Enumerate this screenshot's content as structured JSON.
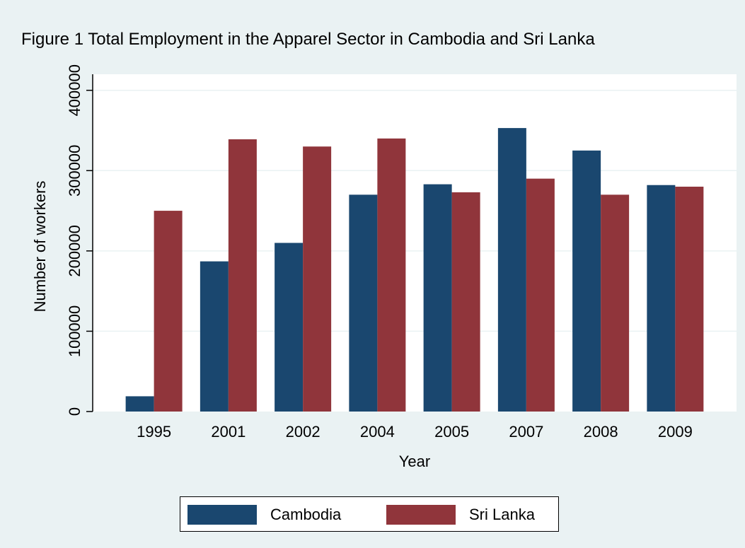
{
  "title": "Figure 1 Total Employment in the Apparel Sector in Cambodia and Sri Lanka",
  "colors": {
    "background": "#eaf2f3",
    "plot_bg": "#ffffff",
    "grid": "#eaf2f3",
    "cambodia": "#1a476f",
    "sri_lanka": "#90353b"
  },
  "chart_data": {
    "type": "bar",
    "title": "Figure 1 Total Employment in the Apparel Sector in Cambodia and Sri Lanka",
    "xlabel": "Year",
    "ylabel": "Number of workers",
    "categories": [
      "1995",
      "2001",
      "2002",
      "2004",
      "2005",
      "2007",
      "2008",
      "2009"
    ],
    "series": [
      {
        "name": "Cambodia",
        "color": "#1a476f",
        "values": [
          19000,
          187000,
          210000,
          270000,
          283000,
          353000,
          325000,
          282000
        ]
      },
      {
        "name": "Sri Lanka",
        "color": "#90353b",
        "values": [
          250000,
          339000,
          330000,
          340000,
          273000,
          290000,
          270000,
          280000
        ]
      }
    ],
    "ylim": [
      0,
      420000
    ],
    "yticks": [
      0,
      100000,
      200000,
      300000,
      400000
    ],
    "ytick_labels": [
      "0",
      "100000",
      "200000",
      "300000",
      "400000"
    ],
    "grid": true,
    "legend": "bottom"
  }
}
